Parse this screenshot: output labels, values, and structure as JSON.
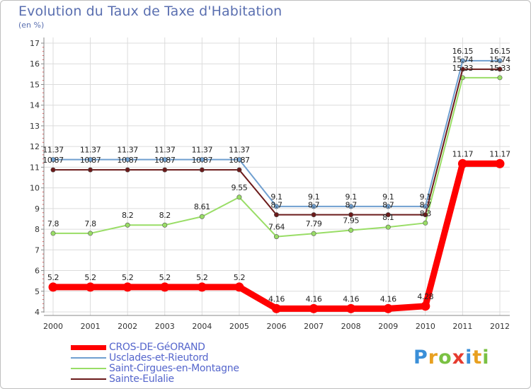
{
  "chart_data": {
    "type": "line",
    "title": "Evolution du Taux de Taxe d'Habitation",
    "subtitle": "(en %)",
    "xlabel": "",
    "ylabel": "",
    "ylim": [
      4,
      17
    ],
    "yticks": [
      "4",
      "5",
      "6",
      "7",
      "8",
      "9",
      "10",
      "11",
      "12",
      "13",
      "14",
      "15",
      "16",
      "17"
    ],
    "categories": [
      "2000",
      "2001",
      "2002",
      "2003",
      "2004",
      "2005",
      "2006",
      "2007",
      "2008",
      "2009",
      "2010",
      "2011",
      "2012"
    ],
    "series": [
      {
        "name": "CROS-DE-GéORAND",
        "color": "#ff0000",
        "values": [
          5.2,
          5.2,
          5.2,
          5.2,
          5.2,
          5.2,
          4.16,
          4.16,
          4.16,
          4.16,
          4.28,
          11.17,
          11.17
        ],
        "labels": [
          "5.2",
          "5.2",
          "5.2",
          "5.2",
          "5.2",
          "5.2",
          "4.16",
          "4.16",
          "4.16",
          "4.16",
          "4.28",
          "11.17",
          "11.17"
        ]
      },
      {
        "name": "Usclades-et-Rieutord",
        "color": "#6f9fd0",
        "values": [
          11.37,
          11.37,
          11.37,
          11.37,
          11.37,
          11.37,
          9.1,
          9.1,
          9.1,
          9.1,
          9.1,
          16.15,
          16.15
        ],
        "labels": [
          "11.37",
          "11.37",
          "11.37",
          "11.37",
          "11.37",
          "11.37",
          "9.1",
          "9.1",
          "9.1",
          "9.1",
          "9.1",
          "16.15",
          "16.15"
        ]
      },
      {
        "name": "Saint-Cirgues-en-Montagne",
        "color": "#99dd66",
        "values": [
          7.8,
          7.8,
          8.2,
          8.2,
          8.61,
          9.55,
          7.64,
          7.79,
          7.95,
          8.1,
          8.3,
          15.33,
          15.33
        ],
        "labels": [
          "7.8",
          "7.8",
          "8.2",
          "8.2",
          "8.61",
          "9.55",
          "7.64",
          "7.79",
          "7.95",
          "8.1",
          "8.3",
          "15.33",
          "15.33"
        ]
      },
      {
        "name": "Sainte-Eulalie",
        "color": "#6b1a1a",
        "values": [
          10.87,
          10.87,
          10.87,
          10.87,
          10.87,
          10.87,
          8.7,
          8.7,
          8.7,
          8.7,
          8.7,
          15.74,
          15.74
        ],
        "labels": [
          "10.87",
          "10.87",
          "10.87",
          "10.87",
          "10.87",
          "10.87",
          "8.7",
          "8.7",
          "8.7",
          "8.7",
          "8.7",
          "15.74",
          "15.74"
        ]
      }
    ],
    "legend_position": "bottom-left"
  },
  "brand": {
    "letters": [
      "P",
      "r",
      "o",
      "x",
      "i",
      "t",
      "i"
    ],
    "colors": [
      "#3a8fd8",
      "#e8a020",
      "#7ac143",
      "#e63b2e",
      "#3a8fd8",
      "#e8a020",
      "#7ac143"
    ]
  }
}
